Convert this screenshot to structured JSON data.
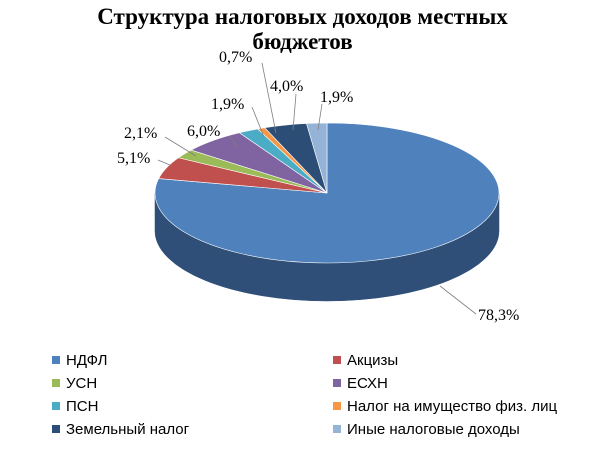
{
  "chart_data": {
    "type": "pie",
    "title_line1": "Структура налоговых доходов местных",
    "title_line2": "бюджетов",
    "slices": [
      {
        "name": "НДФЛ",
        "value": 78.3,
        "label": "78,3%",
        "color": "#4f81bd",
        "side": "#2f4f78"
      },
      {
        "name": "Акцизы",
        "value": 5.1,
        "label": "5,1%",
        "color": "#c0504d",
        "side": "#7a2f2d"
      },
      {
        "name": "УСН",
        "value": 2.1,
        "label": "2,1%",
        "color": "#9bbb59",
        "side": "#5f7a30"
      },
      {
        "name": "ЕСХН",
        "value": 6.0,
        "label": "6,0%",
        "color": "#8064a2",
        "side": "#4e3c66"
      },
      {
        "name": "ПСН",
        "value": 1.9,
        "label": "1,9%",
        "color": "#4bacc6",
        "side": "#2b6f80"
      },
      {
        "name": "Налог на имущество физ. лиц",
        "value": 0.7,
        "label": "0,7%",
        "color": "#f79646",
        "side": "#a3571b"
      },
      {
        "name": "Земельный налог",
        "value": 4.0,
        "label": "4,0%",
        "color": "#2c4d75",
        "side": "#162a42"
      },
      {
        "name": "Иные налоговые доходы",
        "value": 1.9,
        "label": "1,9%",
        "color": "#95b3d7",
        "side": "#5a7ca6"
      }
    ],
    "legend_position": "bottom"
  }
}
